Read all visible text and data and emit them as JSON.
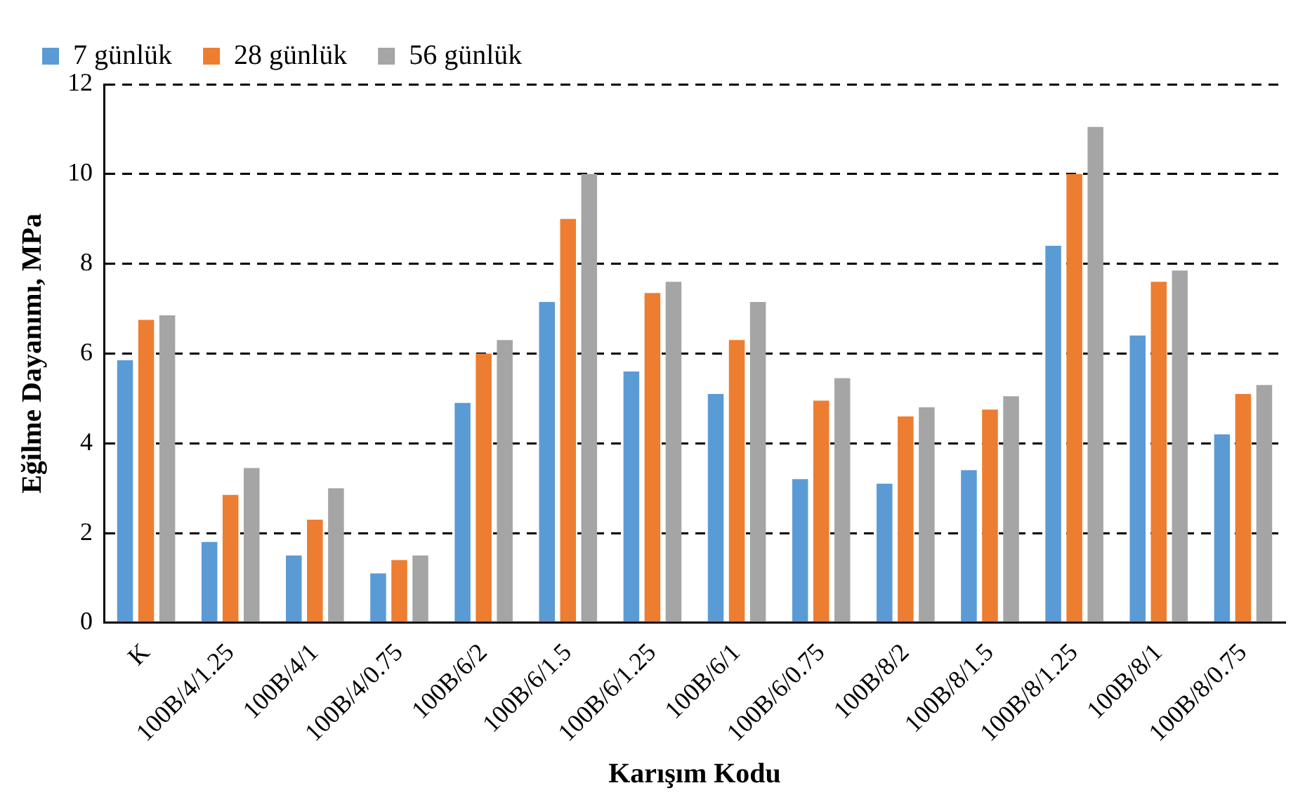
{
  "chart_data": {
    "type": "bar",
    "xlabel": "Karışım Kodu",
    "ylabel": "Eğilme Dayanımı, MPa",
    "categories": [
      "K",
      "100B/4/1.25",
      "100B/4/1",
      "100B/4/0.75",
      "100B/6/2",
      "100B/6/1.5",
      "100B/6/1.25",
      "100B/6/1",
      "100B/6/0.75",
      "100B/8/2",
      "100B/8/1.5",
      "100B/8/1.25",
      "100B/8/1",
      "100B/8/0.75"
    ],
    "series": [
      {
        "name": "7 günlük",
        "color": "#5b9bd5",
        "values": [
          5.85,
          1.8,
          1.5,
          1.1,
          4.9,
          7.15,
          5.6,
          5.1,
          3.2,
          3.1,
          3.4,
          8.4,
          6.4,
          4.2
        ]
      },
      {
        "name": "28 günlük",
        "color": "#ed7d31",
        "values": [
          6.75,
          2.85,
          2.3,
          1.4,
          6.0,
          9.0,
          7.35,
          6.3,
          4.95,
          4.6,
          4.75,
          10.0,
          7.6,
          5.1
        ]
      },
      {
        "name": "56 günlük",
        "color": "#a5a5a5",
        "values": [
          6.85,
          3.45,
          3.0,
          1.5,
          6.3,
          10.0,
          7.6,
          7.15,
          5.45,
          4.8,
          5.05,
          11.05,
          7.85,
          5.3
        ]
      }
    ],
    "ylim": [
      0,
      12
    ],
    "yticks": [
      0,
      2,
      4,
      6,
      8,
      10,
      12
    ],
    "grid": "y",
    "legend": "top left"
  }
}
